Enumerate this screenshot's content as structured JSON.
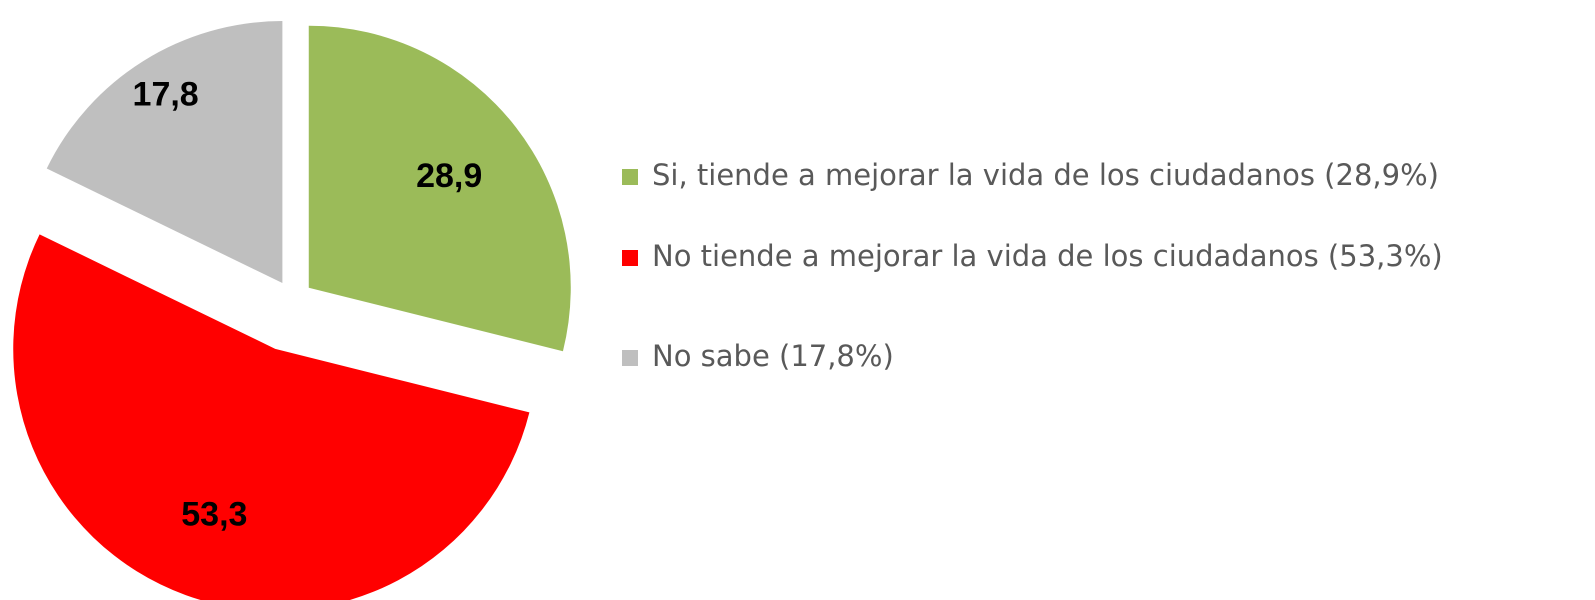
{
  "chart_data": {
    "type": "pie",
    "categories": [
      "Si, tiende a mejorar la vida de los ciudadanos (28,9%)",
      "No tiende a mejorar la vida de los ciudadanos (53,3%)",
      "No sabe (17,8%)"
    ],
    "values": [
      28.9,
      53.3,
      17.8
    ],
    "value_labels": [
      "28,9",
      "53,3",
      "17,8"
    ],
    "colors": [
      "#9bbb59",
      "#ff0000",
      "#bfbfbf"
    ]
  }
}
